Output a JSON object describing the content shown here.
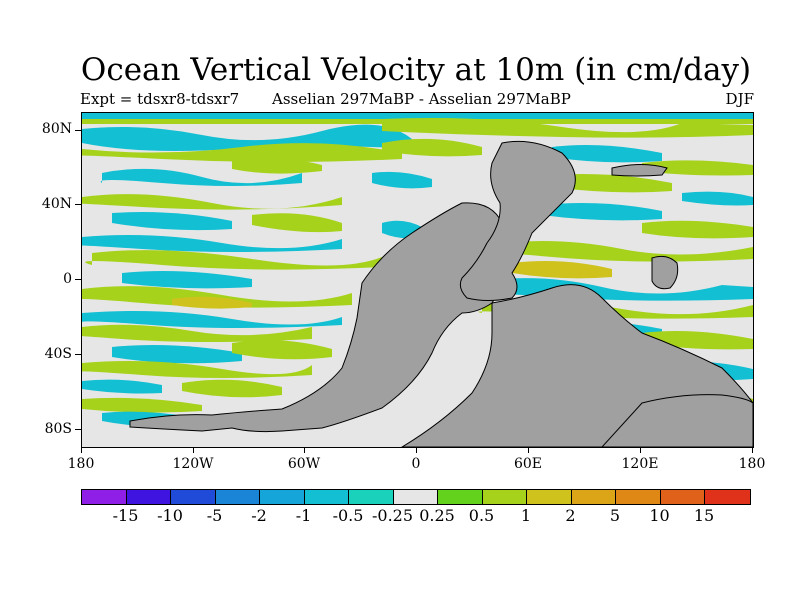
{
  "title": "Ocean Vertical Velocity at 10m (in cm/day)",
  "subtitle_left": "Expt = tdsxr8-tdsxr7",
  "subtitle_center": "Asselian 297MaBP - Asselian 297MaBP",
  "subtitle_right": "DJF",
  "lat_labels": [
    "80N",
    "40N",
    "0",
    "40S",
    "80S"
  ],
  "lon_labels": [
    "180",
    "120W",
    "60W",
    "0",
    "60E",
    "120E",
    "180"
  ],
  "colorbar": {
    "labels": [
      "-15",
      "-10",
      "-5",
      "-2",
      "-1",
      "-0.5",
      "-0.25",
      "0.25",
      "0.5",
      "1",
      "2",
      "5",
      "10",
      "15"
    ],
    "colors": [
      "#8f1ee6",
      "#3f14e0",
      "#1f4bd8",
      "#1a84d6",
      "#16a5d8",
      "#13bfd3",
      "#1ad1bb",
      "#e6e6e6",
      "#62d21c",
      "#a6d21c",
      "#cfc21c",
      "#dca517",
      "#df8816",
      "#e0621a",
      "#e0321a"
    ]
  },
  "colors": {
    "land": "#a0a0a0",
    "ocean_neutral": "#e6e6e6",
    "upwelling_weak": "#a6d21c",
    "upwelling_mid": "#cfc21c",
    "downwelling_weak": "#13bfd3",
    "downwelling_mid": "#16a5d8"
  }
}
